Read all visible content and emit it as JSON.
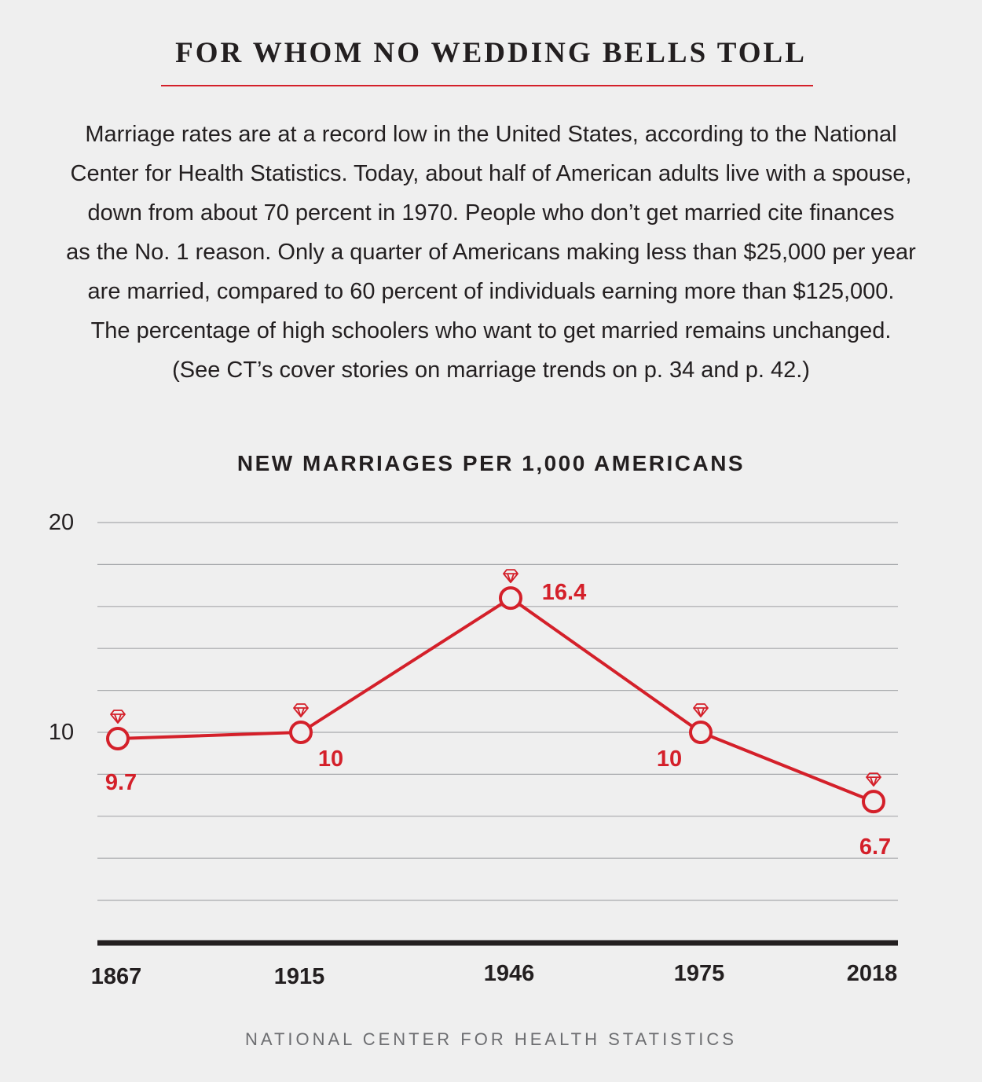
{
  "headline": "FOR WHOM NO WEDDING BELLS TOLL",
  "intro_lines": [
    "Marriage rates are at a record low in the United States, according to the National",
    "Center for Health Statistics. Today, about half of American adults live with a spouse,",
    "down from about 70 percent in 1970. People who don’t get married cite finances",
    "as the No. 1 reason. Only a quarter of Americans making less than $25,000 per year",
    "are married, compared to 60 percent of individuals earning more than $125,000.",
    "The percentage of high schoolers who want to get married remains unchanged.",
    "(See CT’s cover stories on marriage trends on p. 34 and p. 42.)"
  ],
  "source": "NATIONAL CENTER FOR HEALTH STATISTICS",
  "colors": {
    "accent": "#d4202a",
    "text": "#231f20",
    "grid": "#a7a9ac",
    "background": "#efefef",
    "source": "#6d6e71"
  },
  "marker_icon": "diamond-ring-icon",
  "chart_data": {
    "type": "line",
    "title": "NEW MARRIAGES PER 1,000 AMERICANS",
    "categories": [
      "1867",
      "1915",
      "1946",
      "1975",
      "2018"
    ],
    "series": [
      {
        "values": [
          9.7,
          10,
          16.4,
          10,
          6.7
        ]
      }
    ],
    "data_labels": [
      "9.7",
      "10",
      "16.4",
      "10",
      "6.7"
    ],
    "y_ticks": [
      "20",
      "10"
    ],
    "ylim": [
      0,
      20
    ],
    "grid": true,
    "xlabel": "",
    "ylabel": ""
  }
}
